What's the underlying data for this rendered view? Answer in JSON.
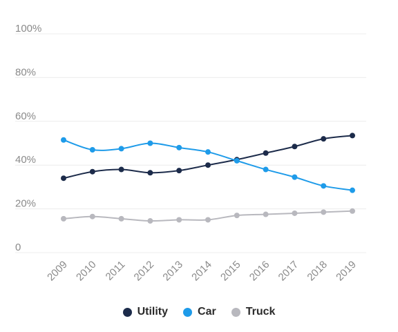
{
  "chart_data": {
    "type": "line",
    "categories": [
      "2009",
      "2010",
      "2011",
      "2012",
      "2013",
      "2014",
      "2015",
      "2016",
      "2017",
      "2018",
      "2019"
    ],
    "ylim": [
      0,
      100
    ],
    "y_ticks": [
      0,
      20,
      40,
      60,
      80,
      100
    ],
    "y_tick_labels": [
      "0",
      "20%",
      "40%",
      "60%",
      "80%",
      "100%"
    ],
    "grid": true,
    "legend_position": "bottom",
    "series": [
      {
        "name": "Utility",
        "color": "#1c2b4a",
        "values": [
          34,
          37,
          38,
          36.5,
          37.5,
          40,
          42.5,
          45.5,
          48.5,
          52,
          53.5
        ]
      },
      {
        "name": "Car",
        "color": "#1e9be9",
        "values": [
          51.5,
          47,
          47.5,
          50,
          48,
          46,
          42,
          38,
          34.5,
          30.5,
          28.5
        ]
      },
      {
        "name": "Truck",
        "color": "#b8b8be",
        "values": [
          15.5,
          16.5,
          15.5,
          14.5,
          15,
          15,
          17,
          17.5,
          18,
          18.5,
          19
        ]
      }
    ]
  },
  "legend": {
    "items": [
      {
        "label": "Utility",
        "color": "#1c2b4a"
      },
      {
        "label": "Car",
        "color": "#1e9be9"
      },
      {
        "label": "Truck",
        "color": "#b8b8be"
      }
    ]
  }
}
